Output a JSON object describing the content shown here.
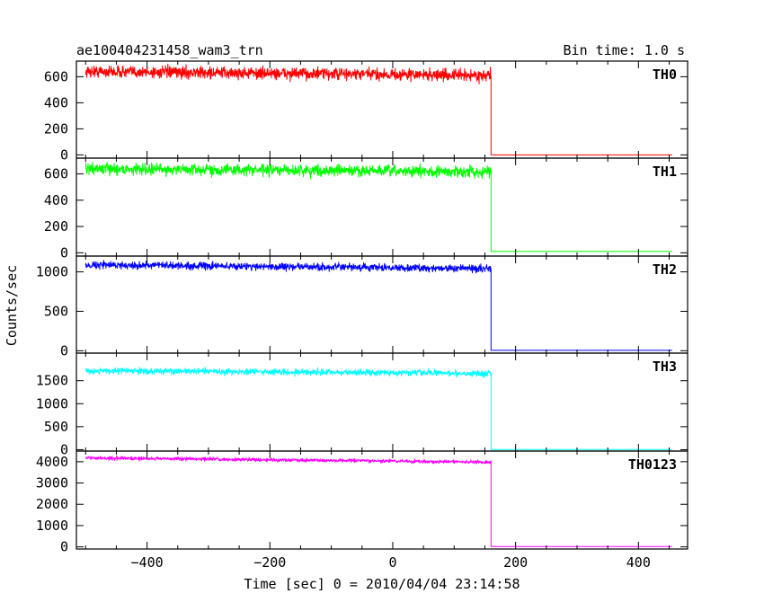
{
  "chart_data": {
    "type": "line",
    "title": "ae100404231458_wam3_trn",
    "bin_time_label": "Bin time: 1.0 s",
    "xlabel": "Time [sec] 0 = 2010/04/04 23:14:58",
    "ylabel": "Counts/sec",
    "xlim": [
      -515,
      480
    ],
    "x_tick_labels": [
      "−400",
      "−200",
      "0",
      "200",
      "400"
    ],
    "x_tick_values": [
      -400,
      -200,
      0,
      200,
      400
    ],
    "step_time": 160,
    "data_end": 455,
    "panels": [
      {
        "name": "TH0",
        "color": "#ff0000",
        "ylim": [
          -25,
          720
        ],
        "yticks": [
          0,
          200,
          400,
          600
        ],
        "ytick_labels": [
          "0",
          "200",
          "400",
          "600"
        ],
        "level_start": 640,
        "level_end": 610,
        "noise": 30,
        "after_level": 0
      },
      {
        "name": "TH1",
        "color": "#00ff00",
        "ylim": [
          -25,
          720
        ],
        "yticks": [
          0,
          200,
          400,
          600
        ],
        "ytick_labels": [
          "0",
          "200",
          "400",
          "600"
        ],
        "level_start": 640,
        "level_end": 615,
        "noise": 28,
        "after_level": 10
      },
      {
        "name": "TH2",
        "color": "#0000ff",
        "ylim": [
          -30,
          1200
        ],
        "yticks": [
          0,
          500,
          1000
        ],
        "ytick_labels": [
          "0",
          "500",
          "1000"
        ],
        "level_start": 1090,
        "level_end": 1040,
        "noise": 30,
        "after_level": 5
      },
      {
        "name": "TH3",
        "color": "#00ffff",
        "ylim": [
          -30,
          2100
        ],
        "yticks": [
          0,
          500,
          1000,
          1500
        ],
        "ytick_labels": [
          "0",
          "500",
          "1000",
          "1500"
        ],
        "level_start": 1720,
        "level_end": 1660,
        "noise": 45,
        "after_level": 5
      },
      {
        "name": "TH0123",
        "color": "#ff00ff",
        "ylim": [
          -100,
          4500
        ],
        "yticks": [
          0,
          1000,
          2000,
          3000,
          4000
        ],
        "ytick_labels": [
          "0",
          "1000",
          "2000",
          "3000",
          "4000"
        ],
        "level_start": 4180,
        "level_end": 3980,
        "noise": 55,
        "after_level": 15
      }
    ]
  }
}
